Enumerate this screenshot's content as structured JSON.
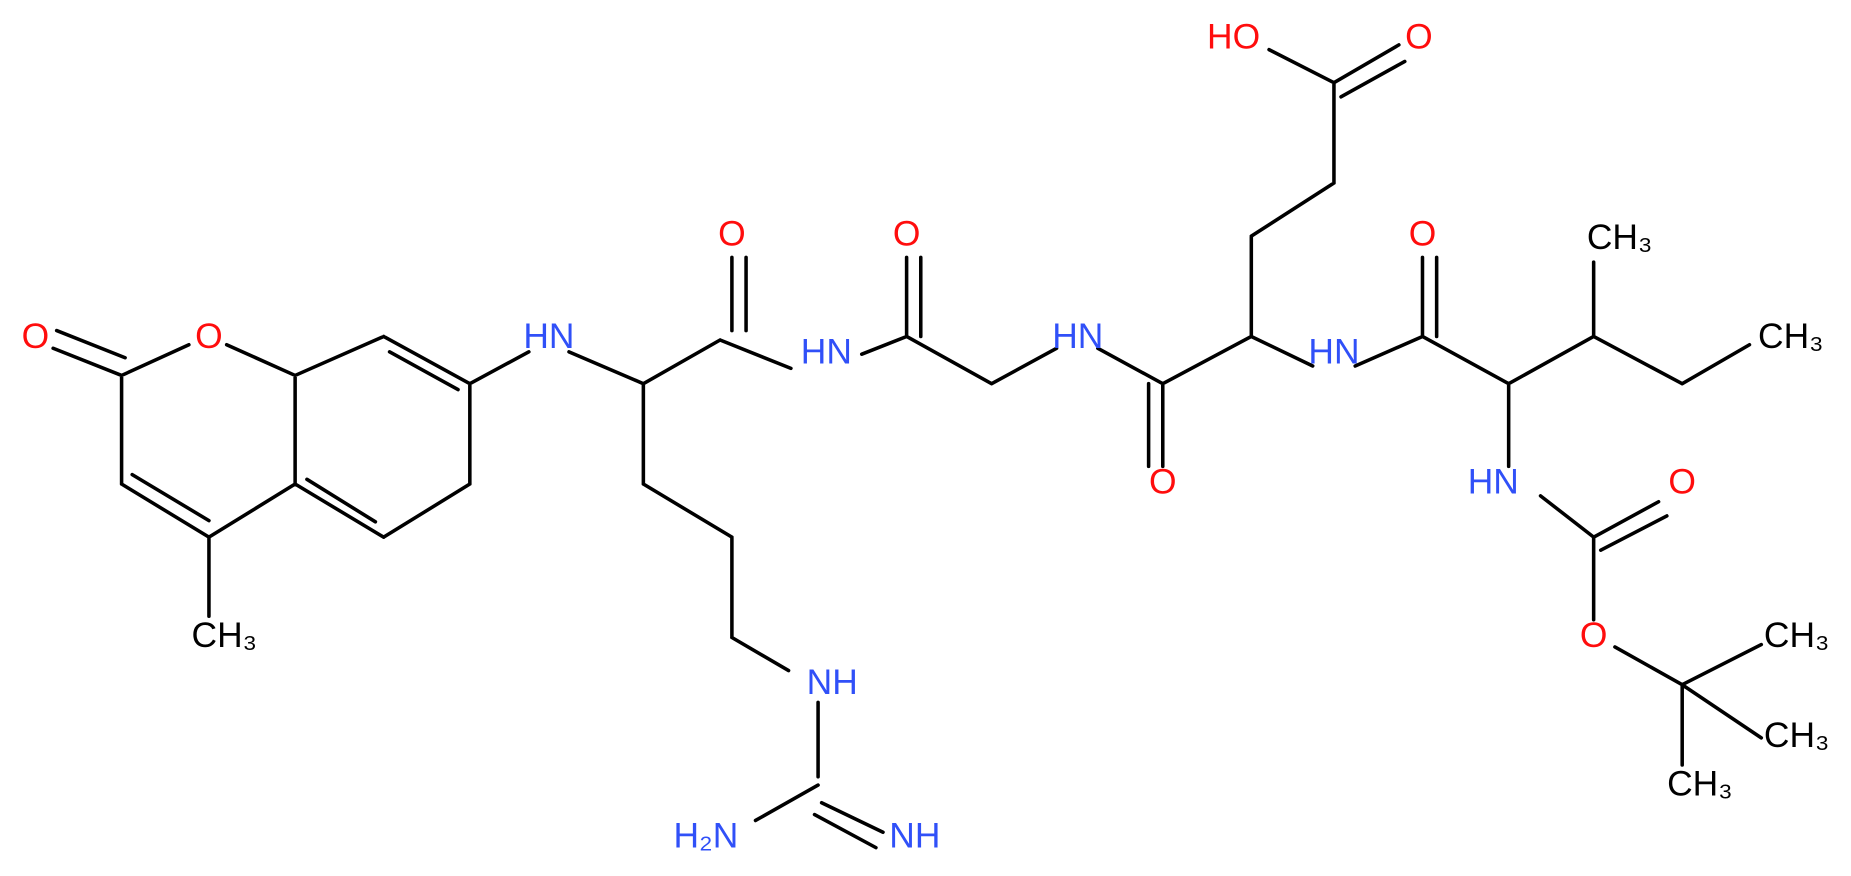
{
  "nodes": [
    {
      "label": "O"
    },
    {
      "label": "O"
    },
    {
      "label": "CH₃"
    },
    {
      "label": "HN"
    },
    {
      "label": "O"
    },
    {
      "label": "HN"
    },
    {
      "label": "NH"
    },
    {
      "label": "H₂N"
    },
    {
      "label": "NH"
    },
    {
      "label": "O"
    },
    {
      "label": "HN"
    },
    {
      "label": "O"
    },
    {
      "label": "HO"
    },
    {
      "label": "O"
    },
    {
      "label": "HN"
    },
    {
      "label": "O"
    },
    {
      "label": "CH₃"
    },
    {
      "label": "CH₃"
    },
    {
      "label": "HN"
    },
    {
      "label": "O"
    },
    {
      "label": "O"
    },
    {
      "label": "CH₃"
    },
    {
      "label": "CH₃"
    },
    {
      "label": "CH₃"
    }
  ]
}
